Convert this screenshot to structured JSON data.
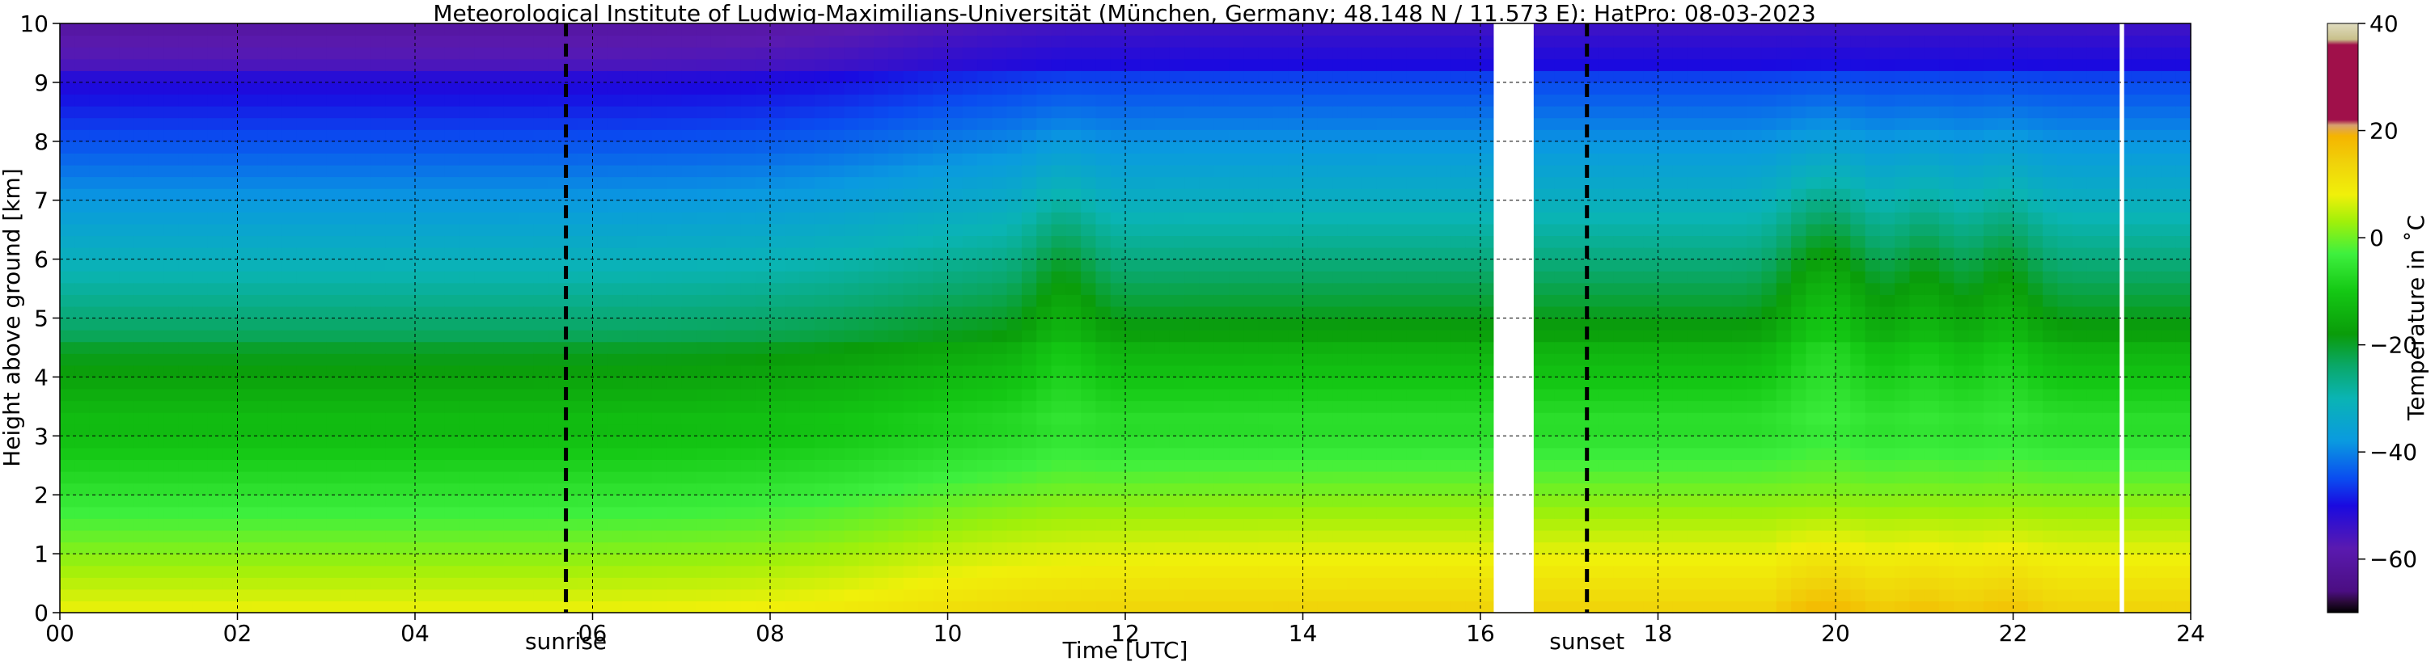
{
  "chart_data": {
    "type": "heatmap",
    "title": "Meteorological Institute of Ludwig-Maximilians-Universität (München, Germany; 48.148 N / 11.573 E):    HatPro: 08-03-2023",
    "xlabel": "Time [UTC]",
    "ylabel": "Height above ground [km]",
    "xlim": [
      0,
      24
    ],
    "ylim": [
      0,
      10
    ],
    "x_ticks": [
      0,
      2,
      4,
      6,
      8,
      10,
      12,
      14,
      16,
      18,
      20,
      22,
      24
    ],
    "x_tick_labels": [
      "00",
      "02",
      "04",
      "06",
      "08",
      "10",
      "12",
      "14",
      "16",
      "18",
      "20",
      "22",
      "24"
    ],
    "y_ticks": [
      0,
      1,
      2,
      3,
      4,
      5,
      6,
      7,
      8,
      9,
      10
    ],
    "y_tick_labels": [
      "0",
      "1",
      "2",
      "3",
      "4",
      "5",
      "6",
      "7",
      "8",
      "9",
      "10"
    ],
    "grid": true,
    "annotations": {
      "sunrise": {
        "label": "sunrise",
        "time": 5.7
      },
      "sunset": {
        "label": "sunset",
        "time": 17.2
      }
    },
    "data_gaps": [
      [
        16.15,
        16.6
      ],
      [
        23.2,
        23.25
      ]
    ],
    "colorbar": {
      "label": "Temperature in ˚C",
      "range": [
        -70,
        40
      ],
      "ticks": [
        -60,
        -40,
        -20,
        0,
        20,
        40
      ],
      "tick_labels": [
        "−60",
        "−40",
        "−20",
        "0",
        "20",
        "40"
      ],
      "stops": [
        {
          "v": -70,
          "color": "#000000"
        },
        {
          "v": -68,
          "color": "#2a0a3a"
        },
        {
          "v": -66,
          "color": "#4b0e82"
        },
        {
          "v": -58,
          "color": "#5a1ab0"
        },
        {
          "v": -50,
          "color": "#1a0ae0"
        },
        {
          "v": -45,
          "color": "#0a4cf0"
        },
        {
          "v": -38,
          "color": "#0a9ae0"
        },
        {
          "v": -30,
          "color": "#0ab4b4"
        },
        {
          "v": -24,
          "color": "#0aa86a"
        },
        {
          "v": -18,
          "color": "#0a9c0a"
        },
        {
          "v": -10,
          "color": "#14c814"
        },
        {
          "v": -3,
          "color": "#3ef03e"
        },
        {
          "v": 3,
          "color": "#a0f00a"
        },
        {
          "v": 8,
          "color": "#f0f00a"
        },
        {
          "v": 14,
          "color": "#f0d20a"
        },
        {
          "v": 19,
          "color": "#f5b400"
        },
        {
          "v": 21,
          "color": "#d8a070"
        },
        {
          "v": 22,
          "color": "#a0104a"
        },
        {
          "v": 36,
          "color": "#a0104a"
        },
        {
          "v": 37,
          "color": "#c8c08a"
        },
        {
          "v": 40,
          "color": "#e0dcc0"
        }
      ]
    },
    "features": {
      "surface_temperature_c": {
        "morning": 8,
        "afternoon": 14
      },
      "lapse_rate_c_per_km": 6.2,
      "convective_plumes_time": [
        11.3,
        19.7,
        20.1,
        21.0,
        21.9
      ]
    }
  }
}
